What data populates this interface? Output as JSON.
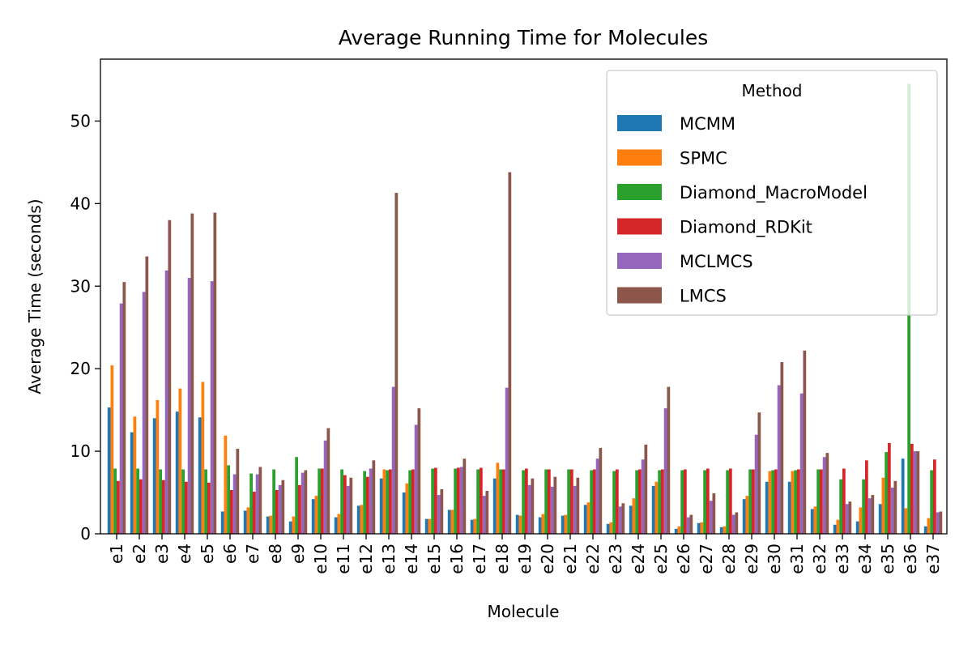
{
  "chart_data": {
    "type": "bar",
    "title": "Average Running Time for Molecules",
    "xlabel": "Molecule",
    "ylabel": "Average Time (seconds)",
    "ylim": [
      0,
      57.5
    ],
    "yticks": [
      0,
      10,
      20,
      30,
      40,
      50
    ],
    "grid": false,
    "legend": {
      "title": "Method",
      "position": "top-right"
    },
    "categories": [
      "e1",
      "e2",
      "e3",
      "e4",
      "e5",
      "e6",
      "e7",
      "e8",
      "e9",
      "e10",
      "e11",
      "e12",
      "e13",
      "e14",
      "e15",
      "e16",
      "e17",
      "e18",
      "e19",
      "e20",
      "e21",
      "e22",
      "e23",
      "e24",
      "e25",
      "e26",
      "e27",
      "e28",
      "e29",
      "e30",
      "e31",
      "e32",
      "e33",
      "e34",
      "e35",
      "e36",
      "e37"
    ],
    "series": [
      {
        "name": "MCMM",
        "color": "#1f77b4",
        "values": [
          15.3,
          12.3,
          14.0,
          14.8,
          14.1,
          2.7,
          2.8,
          2.1,
          1.5,
          4.2,
          2.0,
          3.4,
          6.7,
          5.0,
          1.8,
          2.9,
          1.7,
          6.7,
          2.3,
          2.0,
          2.2,
          3.5,
          1.2,
          3.4,
          5.8,
          0.6,
          1.3,
          0.8,
          4.2,
          6.3,
          6.3,
          3.0,
          1.1,
          1.5,
          3.6,
          9.1,
          0.9
        ]
      },
      {
        "name": "SPMC",
        "color": "#ff7f0e",
        "values": [
          20.4,
          14.2,
          16.2,
          17.6,
          18.4,
          11.9,
          3.2,
          2.2,
          2.1,
          4.6,
          2.4,
          3.5,
          7.8,
          6.1,
          1.8,
          2.9,
          1.8,
          8.6,
          2.2,
          2.4,
          2.3,
          3.8,
          1.4,
          4.3,
          6.3,
          0.9,
          1.4,
          0.9,
          4.6,
          7.6,
          7.6,
          3.3,
          1.7,
          3.2,
          6.8,
          3.1,
          1.9
        ]
      },
      {
        "name": "Diamond_MacroModel",
        "color": "#2ca02c",
        "values": [
          7.9,
          7.9,
          7.8,
          7.8,
          7.8,
          8.3,
          7.3,
          7.8,
          9.3,
          7.9,
          7.8,
          7.6,
          7.7,
          7.7,
          7.9,
          7.9,
          7.8,
          7.8,
          7.7,
          7.8,
          7.8,
          7.7,
          7.6,
          7.7,
          7.7,
          7.7,
          7.7,
          7.7,
          7.8,
          7.7,
          7.7,
          7.8,
          6.6,
          6.6,
          9.9,
          54.5,
          7.7
        ]
      },
      {
        "name": "Diamond_RDKit",
        "color": "#d62728",
        "values": [
          6.4,
          6.6,
          6.5,
          6.3,
          6.2,
          5.3,
          5.1,
          5.3,
          5.9,
          7.9,
          7.1,
          6.9,
          7.8,
          7.8,
          8.0,
          8.0,
          8.0,
          7.8,
          7.9,
          7.8,
          7.8,
          7.8,
          7.8,
          7.8,
          7.8,
          7.8,
          7.9,
          7.9,
          7.8,
          7.8,
          7.8,
          7.8,
          7.9,
          8.9,
          11.0,
          10.9,
          9.0
        ]
      },
      {
        "name": "MCLMCS",
        "color": "#9467bd",
        "values": [
          27.9,
          29.3,
          31.9,
          31.0,
          30.6,
          7.2,
          7.2,
          5.9,
          7.4,
          11.3,
          5.8,
          7.9,
          17.8,
          13.2,
          4.7,
          8.1,
          4.6,
          17.7,
          5.9,
          5.7,
          5.8,
          9.1,
          3.3,
          9.0,
          15.2,
          2.0,
          4.0,
          2.3,
          12.0,
          18.0,
          17.0,
          9.3,
          3.6,
          4.3,
          5.6,
          10.0,
          2.6
        ]
      },
      {
        "name": "LMCS",
        "color": "#8c564b",
        "values": [
          30.5,
          33.6,
          38.0,
          38.8,
          38.9,
          10.3,
          8.1,
          6.5,
          7.7,
          12.8,
          6.8,
          8.9,
          41.3,
          15.2,
          5.4,
          9.1,
          5.2,
          43.8,
          6.7,
          6.9,
          6.8,
          10.4,
          3.7,
          10.8,
          17.8,
          2.3,
          4.9,
          2.6,
          14.7,
          20.8,
          22.2,
          9.8,
          3.9,
          4.7,
          6.4,
          10.0,
          2.7
        ]
      }
    ]
  }
}
